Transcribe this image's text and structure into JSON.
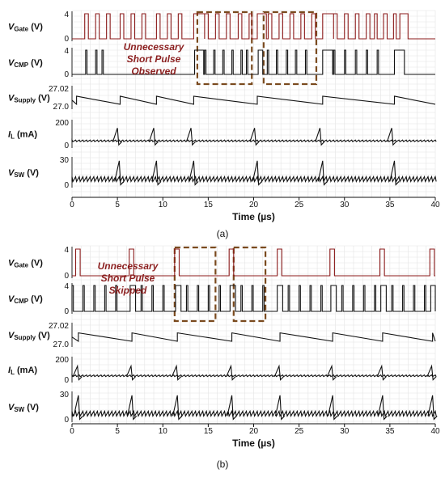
{
  "chart_data": [
    {
      "type": "line",
      "panel_label": "(a)",
      "xlabel": "Time (µs)",
      "xlim": [
        0,
        40
      ],
      "x_ticks": [
        0,
        5,
        10,
        15,
        20,
        25,
        30,
        35,
        40
      ],
      "annotation": [
        "Unnecessary",
        "Short Pulse",
        "Observed"
      ],
      "annotation_color": "#8b1f1f",
      "highlight_boxes": [
        {
          "x_start": 13.8,
          "x_end": 19.8
        },
        {
          "x_start": 21.1,
          "x_end": 26.9
        }
      ],
      "highlight_color": "#7a4a1e",
      "grid": true,
      "series": [
        {
          "name": "V_Gate",
          "label_main": "V",
          "label_sub": "Gate",
          "label_unit": " (V)",
          "ticks": [
            "4",
            "0"
          ],
          "ylim": [
            0,
            4
          ],
          "color": "#8b1a1a",
          "pulse_starts": [
            1.4,
            2.6,
            3.8,
            5.3,
            6.5,
            7.7,
            9.3,
            10.5,
            11.7,
            13.4,
            14.6,
            15.8,
            17.0,
            18.3,
            19.5,
            20.4,
            21.6,
            22.8,
            24.0,
            25.2,
            26.4,
            27.6,
            28.8,
            30.0,
            31.2,
            32.4,
            33.3,
            34.3,
            35.4,
            36.1
          ],
          "pulse_widths": [
            0.4,
            0.4,
            0.4,
            0.4,
            0.4,
            0.4,
            0.4,
            0.4,
            0.4,
            1.2,
            0.4,
            0.4,
            0.4,
            0.4,
            0.3,
            1.0,
            0.4,
            0.4,
            0.4,
            0.4,
            0.4,
            1.2,
            0.4,
            0.4,
            0.4,
            0.4,
            0.3,
            0.4,
            0.3,
            0.9
          ]
        },
        {
          "name": "V_CMP",
          "label_main": "V",
          "label_sub": "CMP",
          "label_unit": " (V)",
          "ticks": [
            "4",
            "0"
          ],
          "ylim": [
            0,
            4
          ],
          "color": "#111111",
          "pulse_starts": [
            1.5,
            2.6,
            3.3,
            13.5,
            14.6,
            15.6,
            16.6,
            17.6,
            18.6,
            19.2,
            20.5,
            21.5,
            22.5,
            23.6,
            24.6,
            25.7,
            27.6,
            28.8,
            30.0,
            31.2,
            32.4,
            33.6,
            35.5
          ],
          "pulse_widths": [
            0.15,
            0.15,
            0.15,
            1.0,
            0.15,
            0.15,
            0.15,
            0.15,
            0.15,
            0.15,
            0.5,
            0.15,
            0.15,
            0.15,
            0.15,
            0.15,
            1.1,
            0.15,
            0.15,
            0.15,
            0.15,
            0.15,
            1.1
          ]
        },
        {
          "name": "V_Supply",
          "label_main": "V",
          "label_sub": "Supply",
          "label_unit": " (V)",
          "ticks": [
            "27.02",
            "27.0"
          ],
          "ylim": [
            26.995,
            27.025
          ],
          "color": "#111111",
          "ramp_resets": [
            0.5,
            5.3,
            9.3,
            13.4,
            20.4,
            27.6,
            35.5
          ],
          "ramp_high": 27.012,
          "ramp_low": 26.999
        },
        {
          "name": "I_L",
          "label_main": "I",
          "label_sub": "L",
          "label_unit": " (mA)",
          "ticks": [
            "200",
            "0"
          ],
          "ylim": [
            -40,
            200
          ],
          "color": "#111111",
          "spike_times": [
            5.0,
            9.0,
            13.1,
            20.1,
            27.3,
            35.2
          ],
          "spike_peak": 140
        },
        {
          "name": "V_SW",
          "label_main": "V",
          "label_sub": "SW",
          "label_unit": " (V)",
          "ticks": [
            "30",
            "0"
          ],
          "ylim": [
            -5,
            30
          ],
          "color": "#111111",
          "spike_times": [
            5.2,
            9.3,
            13.4,
            20.4,
            27.6,
            35.5
          ],
          "spike_peak": 28
        }
      ]
    },
    {
      "type": "line",
      "panel_label": "(b)",
      "xlabel": "Time (µs)",
      "xlim": [
        0,
        40
      ],
      "x_ticks": [
        0,
        5,
        10,
        15,
        20,
        25,
        30,
        35,
        40
      ],
      "annotation": [
        "Unnecessary",
        "Short Pulse",
        "Skipped"
      ],
      "annotation_color": "#8b1f1f",
      "highlight_boxes": [
        {
          "x_start": 11.3,
          "x_end": 15.8
        },
        {
          "x_start": 17.8,
          "x_end": 21.3
        }
      ],
      "highlight_color": "#7a4a1e",
      "grid": true,
      "series": [
        {
          "name": "V_Gate",
          "label_main": "V",
          "label_sub": "Gate",
          "label_unit": " (V)",
          "ticks": [
            "4",
            "0"
          ],
          "ylim": [
            0,
            4
          ],
          "color": "#8b1a1a",
          "pulse_starts": [
            0.4,
            6.3,
            11.3,
            17.3,
            22.6,
            28.4,
            33.9,
            39.4
          ],
          "pulse_widths": [
            0.5,
            0.5,
            0.5,
            0.5,
            0.5,
            0.5,
            0.5,
            0.5
          ]
        },
        {
          "name": "V_CMP",
          "label_main": "V",
          "label_sub": "CMP",
          "label_unit": " (V)",
          "ticks": [
            "4",
            "0"
          ],
          "ylim": [
            0,
            4
          ],
          "color": "#111111",
          "pulse_starts": [
            0.0,
            1.2,
            2.4,
            3.6,
            4.8,
            6.4,
            7.6,
            8.8,
            10.0,
            11.4,
            12.6,
            13.8,
            15.0,
            16.2,
            17.4,
            18.6,
            19.8,
            21.0,
            22.6,
            23.8,
            25.0,
            26.2,
            27.4,
            28.5,
            29.7,
            30.9,
            32.1,
            33.3,
            34.0,
            35.2,
            36.4,
            37.6,
            38.8,
            39.5
          ],
          "pulse_widths": [
            0.15,
            0.15,
            0.15,
            0.15,
            0.15,
            0.6,
            0.15,
            0.15,
            0.15,
            0.6,
            0.15,
            0.15,
            0.15,
            0.15,
            0.6,
            0.15,
            0.15,
            0.15,
            0.6,
            0.15,
            0.15,
            0.15,
            0.15,
            0.6,
            0.15,
            0.15,
            0.15,
            0.15,
            0.6,
            0.15,
            0.15,
            0.15,
            0.15,
            0.5
          ]
        },
        {
          "name": "V_Supply",
          "label_main": "V",
          "label_sub": "Supply",
          "label_unit": " (V)",
          "ticks": [
            "27.02",
            "27.0"
          ],
          "ylim": [
            26.995,
            27.025
          ],
          "color": "#111111",
          "ramp_resets": [
            0.7,
            6.6,
            11.6,
            17.6,
            22.9,
            28.7,
            34.2,
            39.7
          ],
          "ramp_high": 27.013,
          "ramp_low": 27.0
        },
        {
          "name": "I_L",
          "label_main": "I",
          "label_sub": "L",
          "label_unit": " (mA)",
          "ticks": [
            "200",
            "0"
          ],
          "ylim": [
            -40,
            200
          ],
          "color": "#111111",
          "spike_times": [
            0.6,
            6.5,
            11.5,
            17.5,
            22.8,
            28.6,
            34.1,
            39.6
          ],
          "spike_peak": 120
        },
        {
          "name": "V_SW",
          "label_main": "V",
          "label_sub": "SW",
          "label_unit": " (V)",
          "ticks": [
            "30",
            "0"
          ],
          "ylim": [
            -5,
            30
          ],
          "color": "#111111",
          "spike_times": [
            0.7,
            6.6,
            11.6,
            17.6,
            22.9,
            28.7,
            34.2,
            39.7
          ],
          "spike_peak": 28
        }
      ]
    }
  ]
}
